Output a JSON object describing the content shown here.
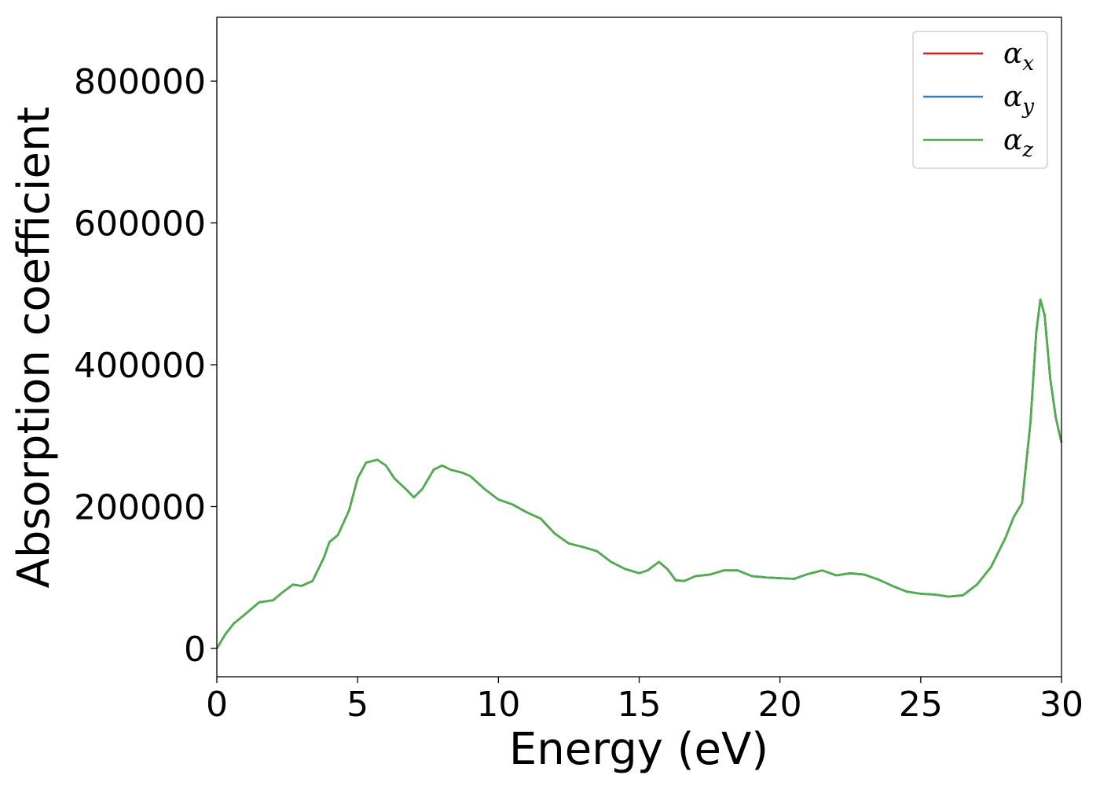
{
  "chart_data": {
    "type": "line",
    "title": "",
    "xlabel": "Energy (eV)",
    "ylabel": "Absorption coefficient",
    "xlim": [
      0,
      30
    ],
    "ylim": [
      -40000,
      890000
    ],
    "x_ticks": [
      0,
      5,
      10,
      15,
      20,
      25,
      30
    ],
    "y_ticks": [
      0,
      200000,
      400000,
      600000,
      800000
    ],
    "grid": false,
    "legend_position": "top-right",
    "legend": [
      {
        "symbol": "α",
        "subscript": "x",
        "color": "#e41a1c"
      },
      {
        "symbol": "α",
        "subscript": "y",
        "color": "#377eb8"
      },
      {
        "symbol": "α",
        "subscript": "z",
        "color": "#4daf4a"
      }
    ],
    "x": [
      0,
      0.3,
      0.6,
      1.0,
      1.5,
      2.0,
      2.3,
      2.7,
      3.0,
      3.4,
      3.8,
      4.0,
      4.3,
      4.7,
      5.0,
      5.3,
      5.7,
      6.0,
      6.3,
      6.7,
      7.0,
      7.3,
      7.7,
      8.0,
      8.3,
      8.7,
      9.0,
      9.5,
      10.0,
      10.5,
      11.0,
      11.5,
      12.0,
      12.5,
      13.0,
      13.5,
      14.0,
      14.5,
      15.0,
      15.3,
      15.7,
      16.0,
      16.3,
      16.6,
      17.0,
      17.5,
      18.0,
      18.5,
      19.0,
      19.5,
      20.0,
      20.5,
      21.0,
      21.5,
      22.0,
      22.5,
      23.0,
      23.5,
      24.0,
      24.5,
      25.0,
      25.5,
      26.0,
      26.5,
      27.0,
      27.5,
      28.0,
      28.3,
      28.6,
      28.9,
      29.1,
      29.25,
      29.4,
      29.6,
      29.8,
      30.0
    ],
    "series": [
      {
        "name": "",
        "color": "#e41a1c",
        "values": [
          0,
          20000,
          35000,
          48000,
          65000,
          68000,
          78000,
          90000,
          88000,
          95000,
          128000,
          150000,
          160000,
          195000,
          240000,
          262000,
          266000,
          258000,
          240000,
          225000,
          213000,
          225000,
          252000,
          258000,
          252000,
          248000,
          243000,
          225000,
          210000,
          203000,
          192000,
          183000,
          162000,
          148000,
          143000,
          137000,
          122000,
          112000,
          106000,
          110000,
          122000,
          112000,
          96000,
          95000,
          102000,
          104000,
          110000,
          110000,
          102000,
          100000,
          99000,
          98000,
          105000,
          110000,
          103000,
          106000,
          104000,
          97000,
          88000,
          80000,
          77000,
          76000,
          73000,
          75000,
          90000,
          115000,
          155000,
          185000,
          205000,
          320000,
          445000,
          492000,
          470000,
          380000,
          325000,
          290000
        ]
      },
      {
        "name": "",
        "color": "#377eb8",
        "values": [
          0,
          20000,
          35000,
          48000,
          65000,
          68000,
          78000,
          90000,
          88000,
          95000,
          128000,
          150000,
          160000,
          195000,
          240000,
          262000,
          266000,
          258000,
          240000,
          225000,
          213000,
          225000,
          252000,
          258000,
          252000,
          248000,
          243000,
          225000,
          210000,
          203000,
          192000,
          183000,
          162000,
          148000,
          143000,
          137000,
          122000,
          112000,
          106000,
          110000,
          122000,
          112000,
          96000,
          95000,
          102000,
          104000,
          110000,
          110000,
          102000,
          100000,
          99000,
          98000,
          105000,
          110000,
          103000,
          106000,
          104000,
          97000,
          88000,
          80000,
          77000,
          76000,
          73000,
          75000,
          90000,
          115000,
          155000,
          185000,
          205000,
          320000,
          445000,
          492000,
          470000,
          380000,
          325000,
          290000
        ]
      },
      {
        "name": "",
        "color": "#4daf4a",
        "values": [
          0,
          20000,
          35000,
          48000,
          65000,
          68000,
          78000,
          90000,
          88000,
          95000,
          128000,
          150000,
          160000,
          195000,
          240000,
          262000,
          266000,
          258000,
          240000,
          225000,
          213000,
          225000,
          252000,
          258000,
          252000,
          248000,
          243000,
          225000,
          210000,
          203000,
          192000,
          183000,
          162000,
          148000,
          143000,
          137000,
          122000,
          112000,
          106000,
          110000,
          122000,
          112000,
          96000,
          95000,
          102000,
          104000,
          110000,
          110000,
          102000,
          100000,
          99000,
          98000,
          105000,
          110000,
          103000,
          106000,
          104000,
          97000,
          88000,
          80000,
          77000,
          76000,
          73000,
          75000,
          90000,
          115000,
          155000,
          185000,
          205000,
          320000,
          445000,
          492000,
          470000,
          380000,
          325000,
          290000
        ]
      }
    ]
  }
}
